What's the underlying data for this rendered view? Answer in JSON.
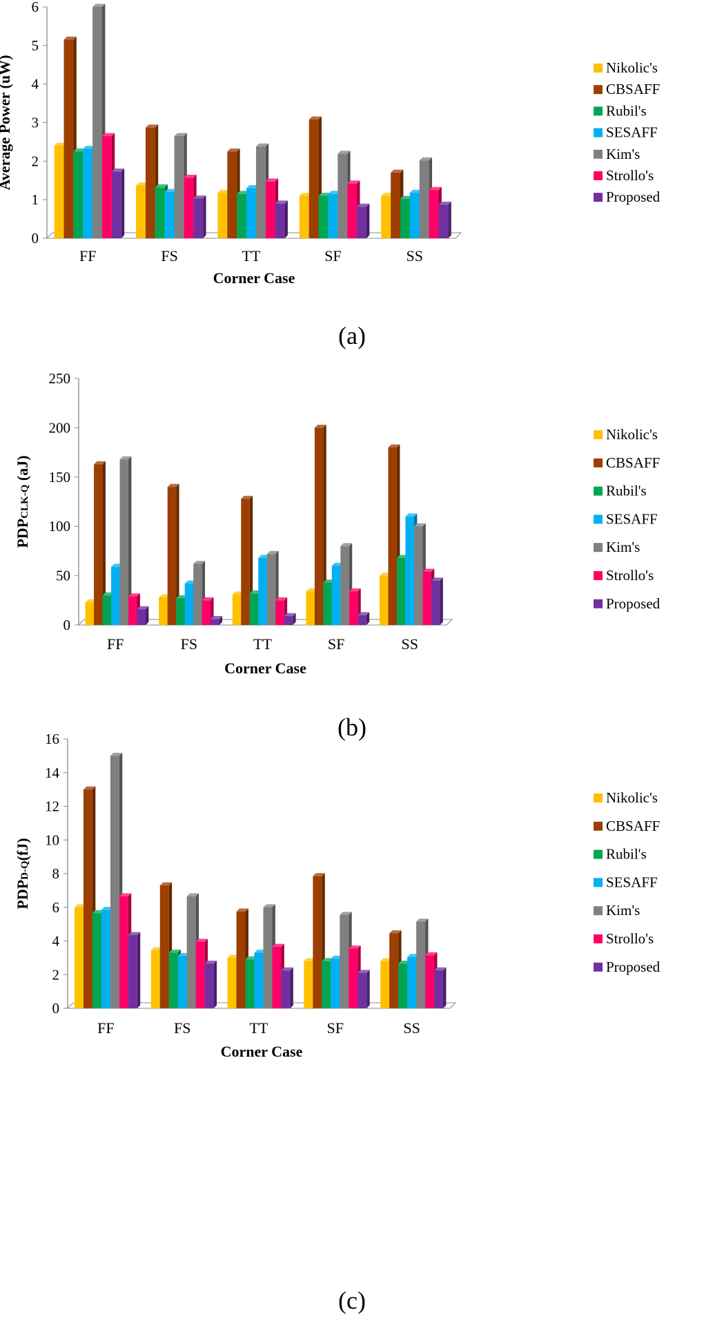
{
  "chart_data": [
    {
      "type": "bar",
      "panel_label": "(a)",
      "ylabel": "Average Power (uW)",
      "xlabel": "Corner Case",
      "categories": [
        "FF",
        "FS",
        "TT",
        "SF",
        "SS"
      ],
      "ylim": [
        0,
        6
      ],
      "yticks": [
        0,
        1,
        2,
        3,
        4,
        5,
        6
      ],
      "legend_position": "right",
      "grid": false,
      "series": [
        {
          "name": "Nikolic's",
          "color": "#FFC000",
          "values": [
            2.4,
            1.37,
            1.18,
            1.1,
            1.1
          ]
        },
        {
          "name": "CBSAFF",
          "color": "#9C3F00",
          "values": [
            5.15,
            2.87,
            2.25,
            3.08,
            1.7
          ]
        },
        {
          "name": "Rubil's",
          "color": "#00A651",
          "values": [
            2.25,
            1.32,
            1.15,
            1.1,
            1.02
          ]
        },
        {
          "name": "SESAFF",
          "color": "#00B0F0",
          "values": [
            2.32,
            1.2,
            1.3,
            1.15,
            1.18
          ]
        },
        {
          "name": "Kim's",
          "color": "#808080",
          "values": [
            6.0,
            2.65,
            2.38,
            2.19,
            2.02
          ]
        },
        {
          "name": "Strollo's",
          "color": "#FF0066",
          "values": [
            2.65,
            1.57,
            1.47,
            1.42,
            1.25
          ]
        },
        {
          "name": "Proposed",
          "color": "#7030A0",
          "values": [
            1.73,
            1.03,
            0.9,
            0.82,
            0.87
          ]
        }
      ]
    },
    {
      "type": "bar",
      "panel_label": "(b)",
      "ylabel_main": "PDP",
      "ylabel_sub": "CLK-Q",
      "ylabel_unit": " (aJ)",
      "xlabel": "Corner Case",
      "categories": [
        "FF",
        "FS",
        "TT",
        "SF",
        "SS"
      ],
      "ylim": [
        0,
        250
      ],
      "yticks": [
        0,
        50,
        100,
        150,
        200,
        250
      ],
      "legend_position": "right",
      "grid": false,
      "series": [
        {
          "name": "Nikolic's",
          "color": "#FFC000",
          "values": [
            23,
            28,
            31,
            34,
            50
          ]
        },
        {
          "name": "CBSAFF",
          "color": "#9C3F00",
          "values": [
            163,
            140,
            128,
            200,
            180
          ]
        },
        {
          "name": "Rubil's",
          "color": "#00A651",
          "values": [
            30,
            27,
            32,
            43,
            68
          ]
        },
        {
          "name": "SESAFF",
          "color": "#00B0F0",
          "values": [
            59,
            42,
            68,
            60,
            110
          ]
        },
        {
          "name": "Kim's",
          "color": "#808080",
          "values": [
            168,
            62,
            72,
            80,
            100
          ]
        },
        {
          "name": "Strollo's",
          "color": "#FF0066",
          "values": [
            29,
            25,
            25,
            34,
            54
          ]
        },
        {
          "name": "Proposed",
          "color": "#7030A0",
          "values": [
            16,
            6,
            9,
            10,
            45
          ]
        }
      ]
    },
    {
      "type": "bar",
      "panel_label": "(c)",
      "ylabel_main": "PDP",
      "ylabel_sub": "D-Q",
      "ylabel_unit": "(fJ)",
      "xlabel": "Corner Case",
      "categories": [
        "FF",
        "FS",
        "TT",
        "SF",
        "SS"
      ],
      "ylim": [
        0,
        16
      ],
      "yticks": [
        0,
        2,
        4,
        6,
        8,
        10,
        12,
        14,
        16
      ],
      "legend_position": "right",
      "grid": false,
      "series": [
        {
          "name": "Nikolic's",
          "color": "#FFC000",
          "values": [
            6.0,
            3.45,
            3.0,
            2.8,
            2.8
          ]
        },
        {
          "name": "CBSAFF",
          "color": "#9C3F00",
          "values": [
            13.0,
            7.3,
            5.75,
            7.85,
            4.45
          ]
        },
        {
          "name": "Rubil's",
          "color": "#00A651",
          "values": [
            5.65,
            3.3,
            2.9,
            2.8,
            2.65
          ]
        },
        {
          "name": "SESAFF",
          "color": "#00B0F0",
          "values": [
            5.85,
            3.1,
            3.3,
            2.95,
            3.05
          ]
        },
        {
          "name": "Kim's",
          "color": "#808080",
          "values": [
            15.0,
            6.65,
            6.0,
            5.55,
            5.15
          ]
        },
        {
          "name": "Strollo's",
          "color": "#FF0066",
          "values": [
            6.65,
            3.95,
            3.65,
            3.55,
            3.15
          ]
        },
        {
          "name": "Proposed",
          "color": "#7030A0",
          "values": [
            4.35,
            2.65,
            2.25,
            2.1,
            2.25
          ]
        }
      ]
    }
  ]
}
